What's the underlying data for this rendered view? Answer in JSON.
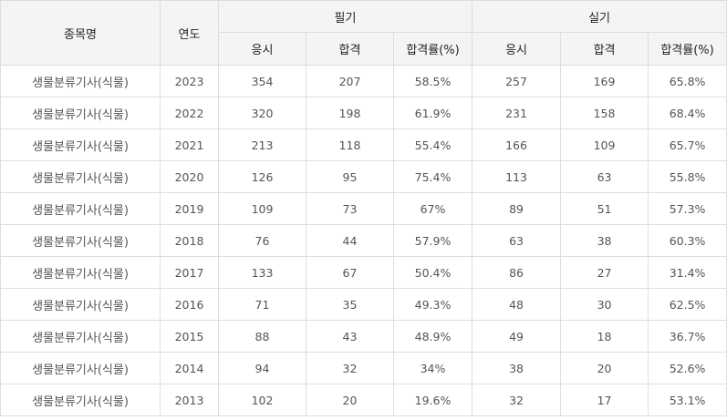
{
  "headers": {
    "subject": "종목명",
    "year": "연도",
    "written": "필기",
    "practical": "실기",
    "applicants": "응시",
    "passed": "합격",
    "pass_rate": "합격률(%)"
  },
  "rows": [
    {
      "name": "생물분류기사(식물)",
      "year": "2023",
      "w_app": "354",
      "w_pass": "207",
      "w_rate": "58.5%",
      "p_app": "257",
      "p_pass": "169",
      "p_rate": "65.8%"
    },
    {
      "name": "생물분류기사(식물)",
      "year": "2022",
      "w_app": "320",
      "w_pass": "198",
      "w_rate": "61.9%",
      "p_app": "231",
      "p_pass": "158",
      "p_rate": "68.4%"
    },
    {
      "name": "생물분류기사(식물)",
      "year": "2021",
      "w_app": "213",
      "w_pass": "118",
      "w_rate": "55.4%",
      "p_app": "166",
      "p_pass": "109",
      "p_rate": "65.7%"
    },
    {
      "name": "생물분류기사(식물)",
      "year": "2020",
      "w_app": "126",
      "w_pass": "95",
      "w_rate": "75.4%",
      "p_app": "113",
      "p_pass": "63",
      "p_rate": "55.8%"
    },
    {
      "name": "생물분류기사(식물)",
      "year": "2019",
      "w_app": "109",
      "w_pass": "73",
      "w_rate": "67%",
      "p_app": "89",
      "p_pass": "51",
      "p_rate": "57.3%"
    },
    {
      "name": "생물분류기사(식물)",
      "year": "2018",
      "w_app": "76",
      "w_pass": "44",
      "w_rate": "57.9%",
      "p_app": "63",
      "p_pass": "38",
      "p_rate": "60.3%"
    },
    {
      "name": "생물분류기사(식물)",
      "year": "2017",
      "w_app": "133",
      "w_pass": "67",
      "w_rate": "50.4%",
      "p_app": "86",
      "p_pass": "27",
      "p_rate": "31.4%"
    },
    {
      "name": "생물분류기사(식물)",
      "year": "2016",
      "w_app": "71",
      "w_pass": "35",
      "w_rate": "49.3%",
      "p_app": "48",
      "p_pass": "30",
      "p_rate": "62.5%"
    },
    {
      "name": "생물분류기사(식물)",
      "year": "2015",
      "w_app": "88",
      "w_pass": "43",
      "w_rate": "48.9%",
      "p_app": "49",
      "p_pass": "18",
      "p_rate": "36.7%"
    },
    {
      "name": "생물분류기사(식물)",
      "year": "2014",
      "w_app": "94",
      "w_pass": "32",
      "w_rate": "34%",
      "p_app": "38",
      "p_pass": "20",
      "p_rate": "52.6%"
    },
    {
      "name": "생물분류기사(식물)",
      "year": "2013",
      "w_app": "102",
      "w_pass": "20",
      "w_rate": "19.6%",
      "p_app": "32",
      "p_pass": "17",
      "p_rate": "53.1%"
    }
  ]
}
